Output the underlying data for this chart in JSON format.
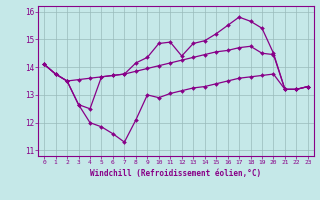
{
  "xlabel": "Windchill (Refroidissement éolien,°C)",
  "ylabel": "",
  "background_color": "#c5e8e8",
  "line_color": "#880088",
  "grid_color": "#99bbbb",
  "xlim": [
    -0.5,
    23.5
  ],
  "ylim": [
    10.8,
    16.2
  ],
  "yticks": [
    11,
    12,
    13,
    14,
    15,
    16
  ],
  "xticks": [
    0,
    1,
    2,
    3,
    4,
    5,
    6,
    7,
    8,
    9,
    10,
    11,
    12,
    13,
    14,
    15,
    16,
    17,
    18,
    19,
    20,
    21,
    22,
    23
  ],
  "series": [
    {
      "x": [
        0,
        1,
        2,
        3,
        4,
        5,
        6,
        7,
        8,
        9,
        10,
        11,
        12,
        13,
        14,
        15,
        16,
        17,
        18,
        19,
        20,
        21,
        22,
        23
      ],
      "y": [
        14.1,
        13.75,
        13.5,
        13.55,
        13.6,
        13.65,
        13.7,
        13.75,
        13.85,
        13.95,
        14.05,
        14.15,
        14.25,
        14.35,
        14.45,
        14.55,
        14.6,
        14.7,
        14.75,
        14.5,
        14.45,
        13.2,
        13.2,
        13.3
      ]
    },
    {
      "x": [
        0,
        1,
        2,
        3,
        4,
        5,
        6,
        7,
        8,
        9,
        10,
        11,
        12,
        13,
        14,
        15,
        16,
        17,
        18,
        19,
        20,
        21,
        22,
        23
      ],
      "y": [
        14.1,
        13.75,
        13.5,
        12.65,
        12.5,
        13.65,
        13.7,
        13.75,
        14.15,
        14.35,
        14.85,
        14.9,
        14.4,
        14.85,
        14.95,
        15.2,
        15.5,
        15.8,
        15.65,
        15.4,
        14.5,
        13.2,
        13.2,
        13.3
      ]
    },
    {
      "x": [
        0,
        1,
        2,
        3,
        4,
        5,
        6,
        7,
        8,
        9,
        10,
        11,
        12,
        13,
        14,
        15,
        16,
        17,
        18,
        19,
        20,
        21,
        22,
        23
      ],
      "y": [
        14.1,
        13.75,
        13.5,
        12.65,
        12.0,
        11.85,
        11.6,
        11.3,
        12.1,
        13.0,
        12.9,
        13.05,
        13.15,
        13.25,
        13.3,
        13.4,
        13.5,
        13.6,
        13.65,
        13.7,
        13.75,
        13.2,
        13.2,
        13.3
      ]
    }
  ]
}
